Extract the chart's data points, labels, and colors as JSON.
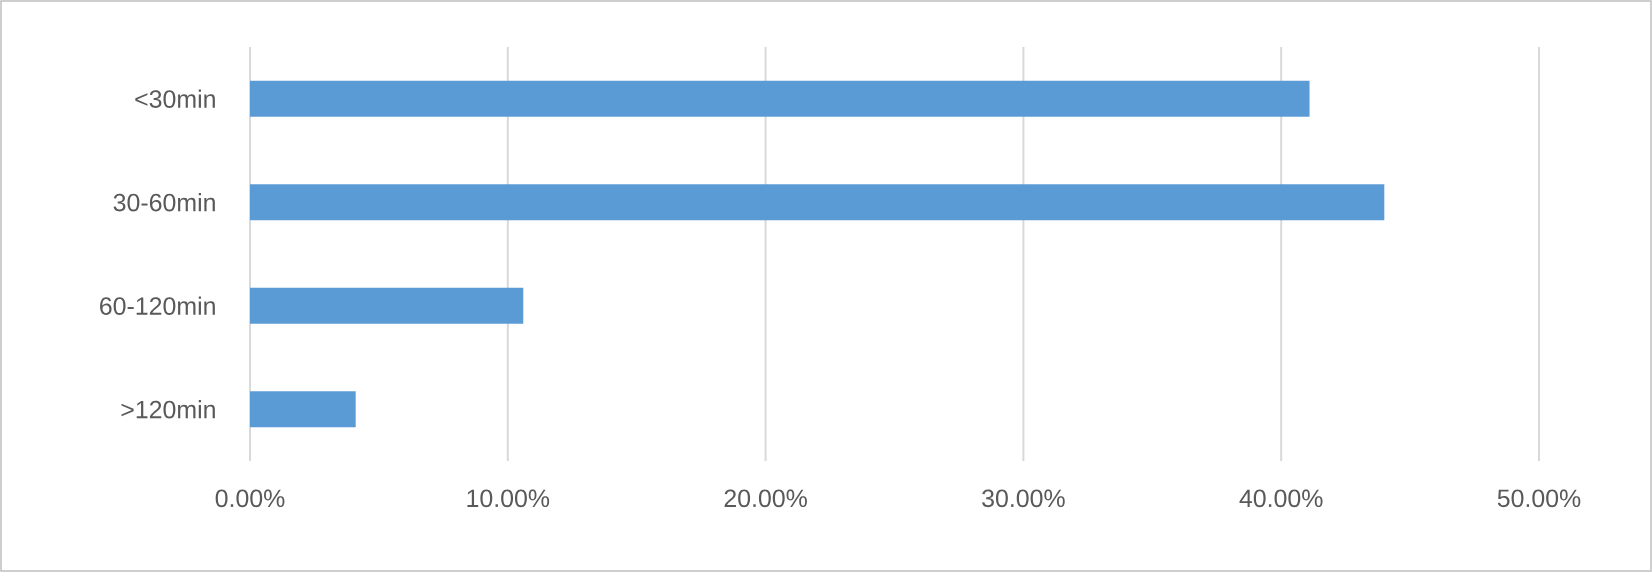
{
  "chart_data": {
    "type": "bar",
    "orientation": "horizontal",
    "categories": [
      "<30min",
      "30-60min",
      "60-120min",
      ">120min"
    ],
    "values": [
      41.1,
      44.0,
      10.6,
      4.1
    ],
    "color": "#5b9bd5",
    "xlim": [
      0,
      50
    ],
    "xticks": [
      {
        "value": 0,
        "label": "0.00%"
      },
      {
        "value": 10,
        "label": "10.00%"
      },
      {
        "value": 20,
        "label": "20.00%"
      },
      {
        "value": 30,
        "label": "30.00%"
      },
      {
        "value": 40,
        "label": "40.00%"
      },
      {
        "value": 50,
        "label": "50.00%"
      }
    ],
    "grid": "x"
  }
}
